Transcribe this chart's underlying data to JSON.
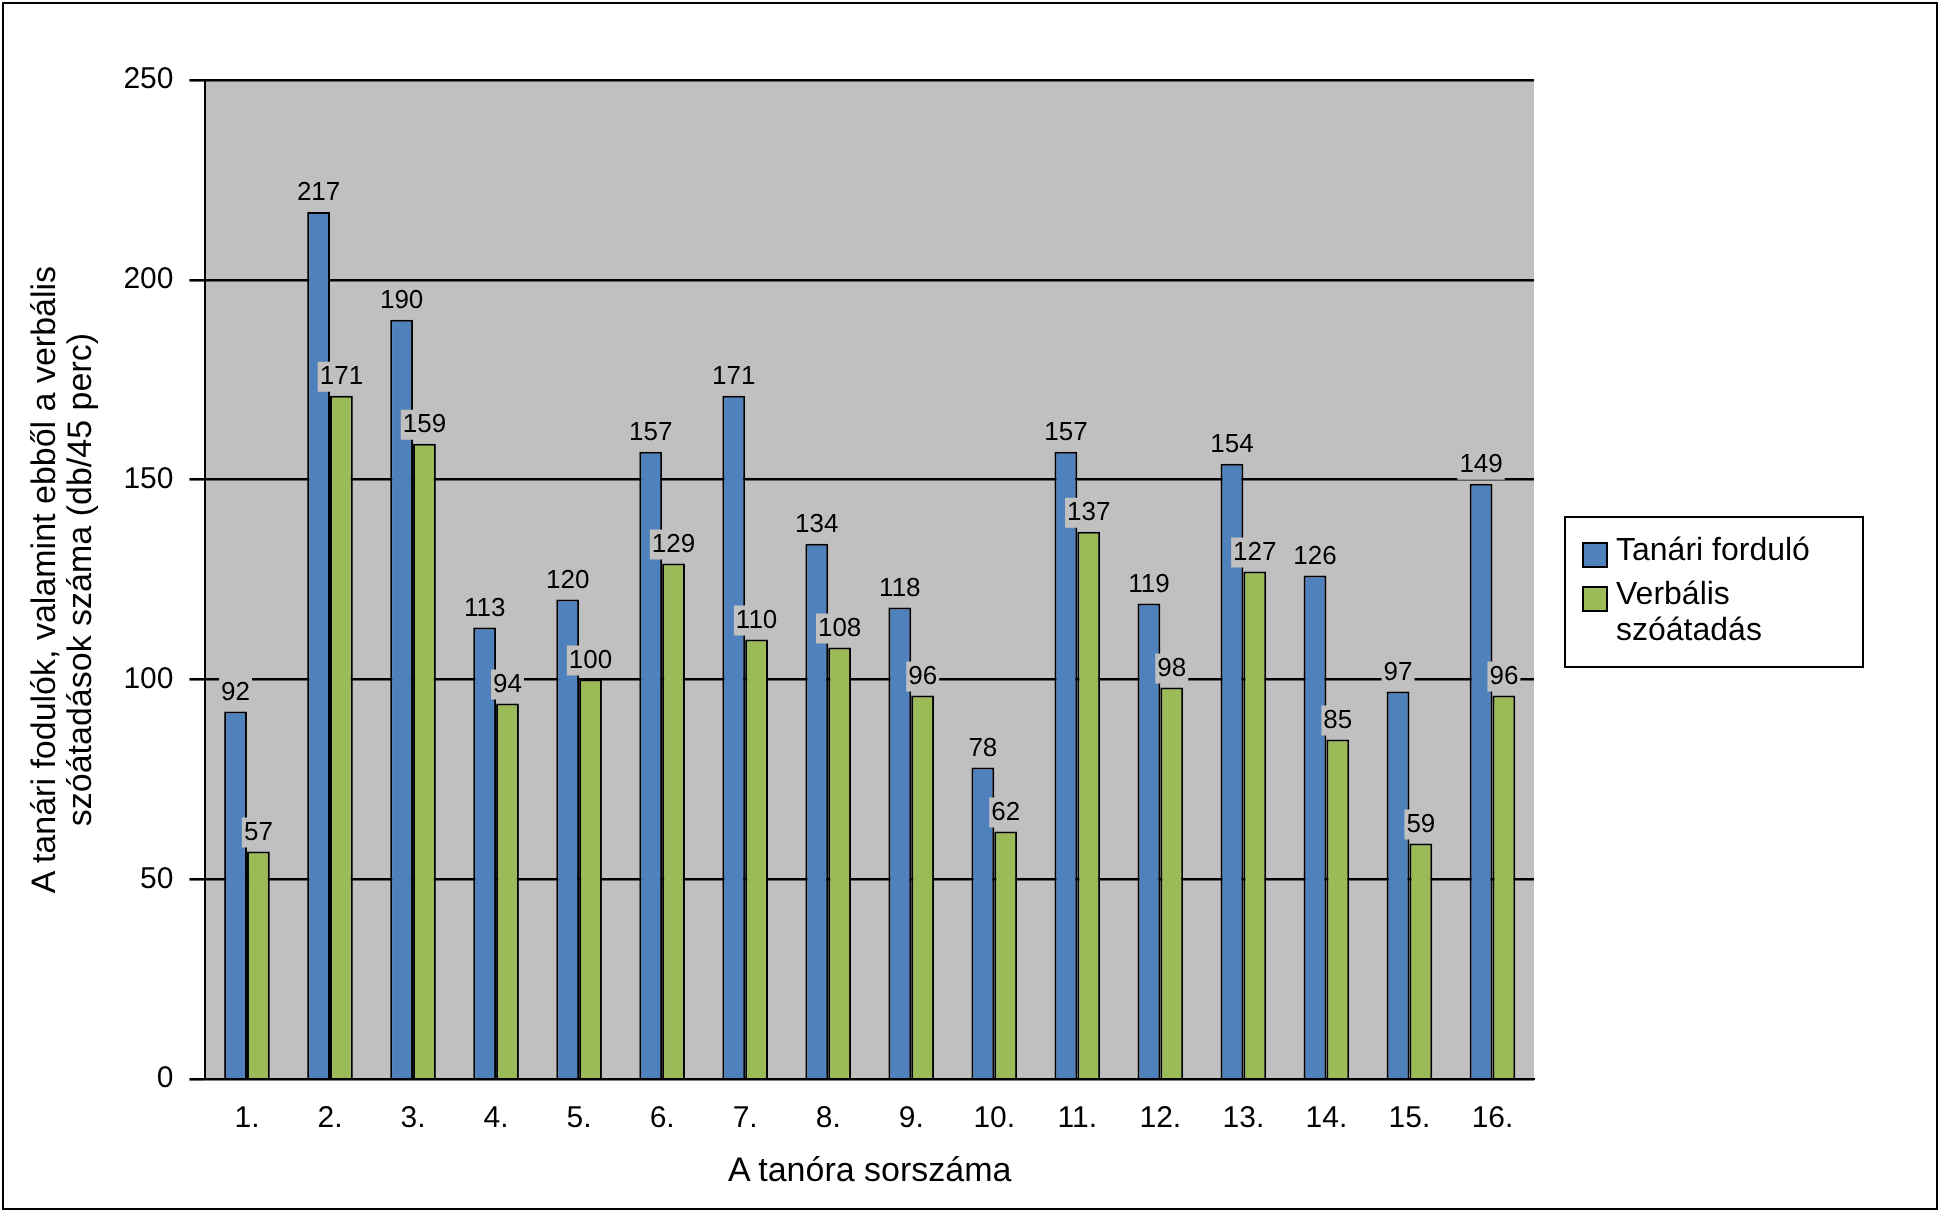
{
  "chart_data": {
    "type": "bar",
    "xlabel": "A tanóra sorszáma",
    "ylabel": "A tanári fodulók, valamint ebből a verbális szóátadások száma (db/45 perc)",
    "categories": [
      "1.",
      "2.",
      "3.",
      "4.",
      "5.",
      "6.",
      "7.",
      "8.",
      "9.",
      "10.",
      "11.",
      "12.",
      "13.",
      "14.",
      "15.",
      "16."
    ],
    "series": [
      {
        "name": "Tanári forduló",
        "color": "#4f81bd",
        "values": [
          92,
          217,
          190,
          113,
          120,
          157,
          171,
          134,
          118,
          78,
          157,
          119,
          154,
          126,
          97,
          149
        ]
      },
      {
        "name": "Verbális szóátadás",
        "color": "#9bbb59",
        "values": [
          57,
          171,
          159,
          94,
          100,
          129,
          110,
          108,
          96,
          62,
          137,
          98,
          127,
          85,
          59,
          96
        ]
      }
    ],
    "ylim": [
      0,
      250
    ],
    "yticks": [
      0,
      50,
      100,
      150,
      200,
      250
    ],
    "grid": "y",
    "legend": "right",
    "data_labels": true
  }
}
